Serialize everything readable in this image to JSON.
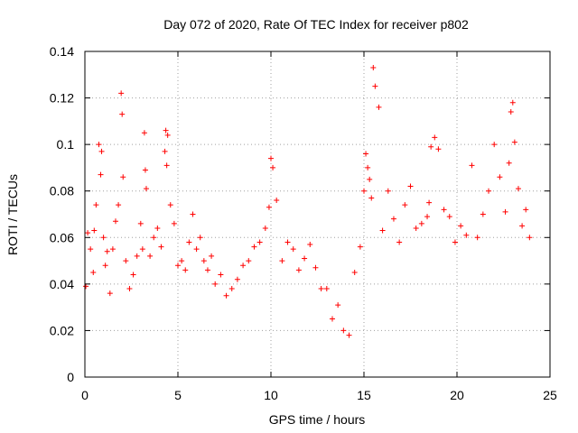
{
  "chart_data": {
    "type": "scatter",
    "title": "Day 072 of 2020, Rate Of TEC Index for receiver p802",
    "xlabel": "GPS time / hours",
    "ylabel": "ROTI / TECUs",
    "xlim": [
      0,
      25
    ],
    "ylim": [
      0,
      0.14
    ],
    "xticks": [
      0,
      5,
      10,
      15,
      20,
      25
    ],
    "xtick_labels": [
      "0",
      "5",
      "10",
      "15",
      "20",
      "25"
    ],
    "yticks": [
      0,
      0.02,
      0.04,
      0.06,
      0.08,
      0.1,
      0.12,
      0.14
    ],
    "ytick_labels": [
      "0",
      "0.02",
      "0.04",
      "0.06",
      "0.08",
      "0.1",
      "0.12",
      "0.14"
    ],
    "grid": true,
    "marker": "+",
    "series": [
      {
        "color": "#ff0000",
        "x": [
          0.05,
          0.15,
          0.3,
          0.45,
          0.5,
          0.6,
          0.75,
          0.85,
          0.9,
          1.0,
          1.1,
          1.2,
          1.35,
          1.5,
          1.65,
          1.8,
          1.95,
          2.0,
          2.05,
          2.2,
          2.4,
          2.6,
          2.8,
          3.0,
          3.1,
          3.2,
          3.25,
          3.3,
          3.5,
          3.7,
          3.9,
          4.1,
          4.3,
          4.35,
          4.4,
          4.45,
          4.6,
          4.8,
          5.0,
          5.2,
          5.4,
          5.6,
          5.8,
          6.0,
          6.2,
          6.4,
          6.6,
          6.8,
          7.0,
          7.3,
          7.6,
          7.9,
          8.2,
          8.5,
          8.8,
          9.1,
          9.4,
          9.7,
          9.9,
          10.0,
          10.1,
          10.3,
          10.6,
          10.9,
          11.2,
          11.5,
          11.8,
          12.1,
          12.4,
          12.7,
          13.0,
          13.3,
          13.6,
          13.9,
          14.2,
          14.5,
          14.8,
          15.0,
          15.1,
          15.2,
          15.3,
          15.4,
          15.5,
          15.6,
          15.8,
          16.0,
          16.3,
          16.6,
          16.9,
          17.2,
          17.5,
          17.8,
          18.1,
          18.4,
          18.5,
          18.6,
          18.8,
          19.0,
          19.3,
          19.6,
          19.9,
          20.2,
          20.5,
          20.8,
          21.1,
          21.4,
          21.7,
          22.0,
          22.3,
          22.6,
          22.8,
          22.9,
          23.0,
          23.1,
          23.3,
          23.5,
          23.7,
          23.9
        ],
        "y": [
          0.039,
          0.062,
          0.055,
          0.045,
          0.063,
          0.074,
          0.1,
          0.087,
          0.097,
          0.06,
          0.048,
          0.054,
          0.036,
          0.055,
          0.067,
          0.074,
          0.122,
          0.113,
          0.086,
          0.05,
          0.038,
          0.044,
          0.052,
          0.066,
          0.055,
          0.105,
          0.089,
          0.081,
          0.052,
          0.06,
          0.064,
          0.056,
          0.097,
          0.106,
          0.091,
          0.104,
          0.074,
          0.066,
          0.048,
          0.05,
          0.046,
          0.058,
          0.07,
          0.055,
          0.06,
          0.05,
          0.046,
          0.052,
          0.04,
          0.044,
          0.035,
          0.038,
          0.042,
          0.048,
          0.05,
          0.056,
          0.058,
          0.064,
          0.073,
          0.094,
          0.09,
          0.076,
          0.05,
          0.058,
          0.055,
          0.046,
          0.051,
          0.057,
          0.047,
          0.038,
          0.038,
          0.025,
          0.031,
          0.02,
          0.018,
          0.045,
          0.056,
          0.08,
          0.096,
          0.09,
          0.085,
          0.077,
          0.133,
          0.125,
          0.116,
          0.063,
          0.08,
          0.068,
          0.058,
          0.074,
          0.082,
          0.064,
          0.066,
          0.069,
          0.075,
          0.099,
          0.103,
          0.098,
          0.072,
          0.069,
          0.058,
          0.065,
          0.061,
          0.091,
          0.06,
          0.07,
          0.08,
          0.1,
          0.086,
          0.071,
          0.092,
          0.114,
          0.118,
          0.101,
          0.081,
          0.065,
          0.072,
          0.06
        ]
      }
    ]
  }
}
